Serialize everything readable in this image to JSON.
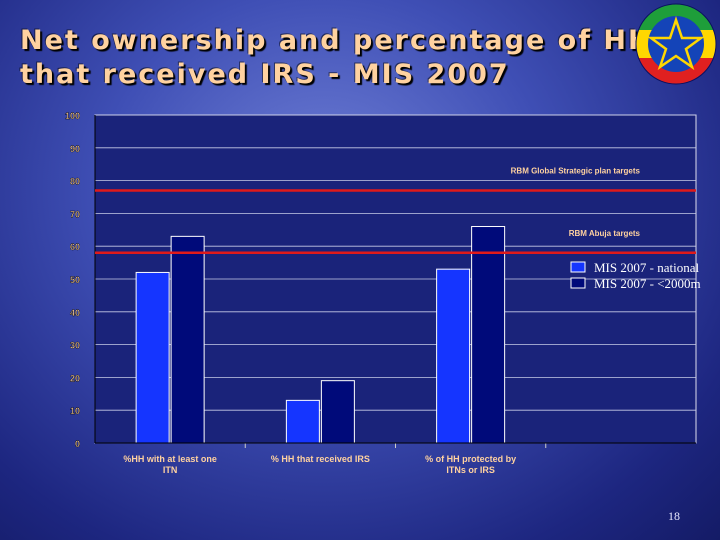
{
  "slide": {
    "title_line1": "Net ownership and percentage of HH",
    "title_line2": "that received IRS - MIS 2007",
    "page_number": "18"
  },
  "colors": {
    "title": "#ffd2a0",
    "series_national": "#1535ff",
    "series_lt2000m": "#000a7a",
    "target_line": "#e01a1a",
    "plot_background": "#1a237a"
  },
  "chart_data": {
    "type": "bar",
    "categories": [
      "%HH with at least one ITN",
      "% HH that received IRS",
      "% of HH protected by ITNs or IRS"
    ],
    "series": [
      {
        "name": "MIS 2007 - national",
        "values": [
          52,
          13,
          53
        ]
      },
      {
        "name": "MIS 2007 - <2000m",
        "values": [
          63,
          19,
          66
        ]
      }
    ],
    "ylim": [
      0,
      100
    ],
    "yticks": [
      0,
      10,
      20,
      30,
      40,
      50,
      60,
      70,
      80,
      90,
      100
    ],
    "grid": true,
    "legend_position": "right",
    "reference_lines": [
      {
        "label": "RBM Global Strategic plan targets",
        "value": 77
      },
      {
        "label": "RBM Abuja targets",
        "value": 58
      }
    ]
  }
}
